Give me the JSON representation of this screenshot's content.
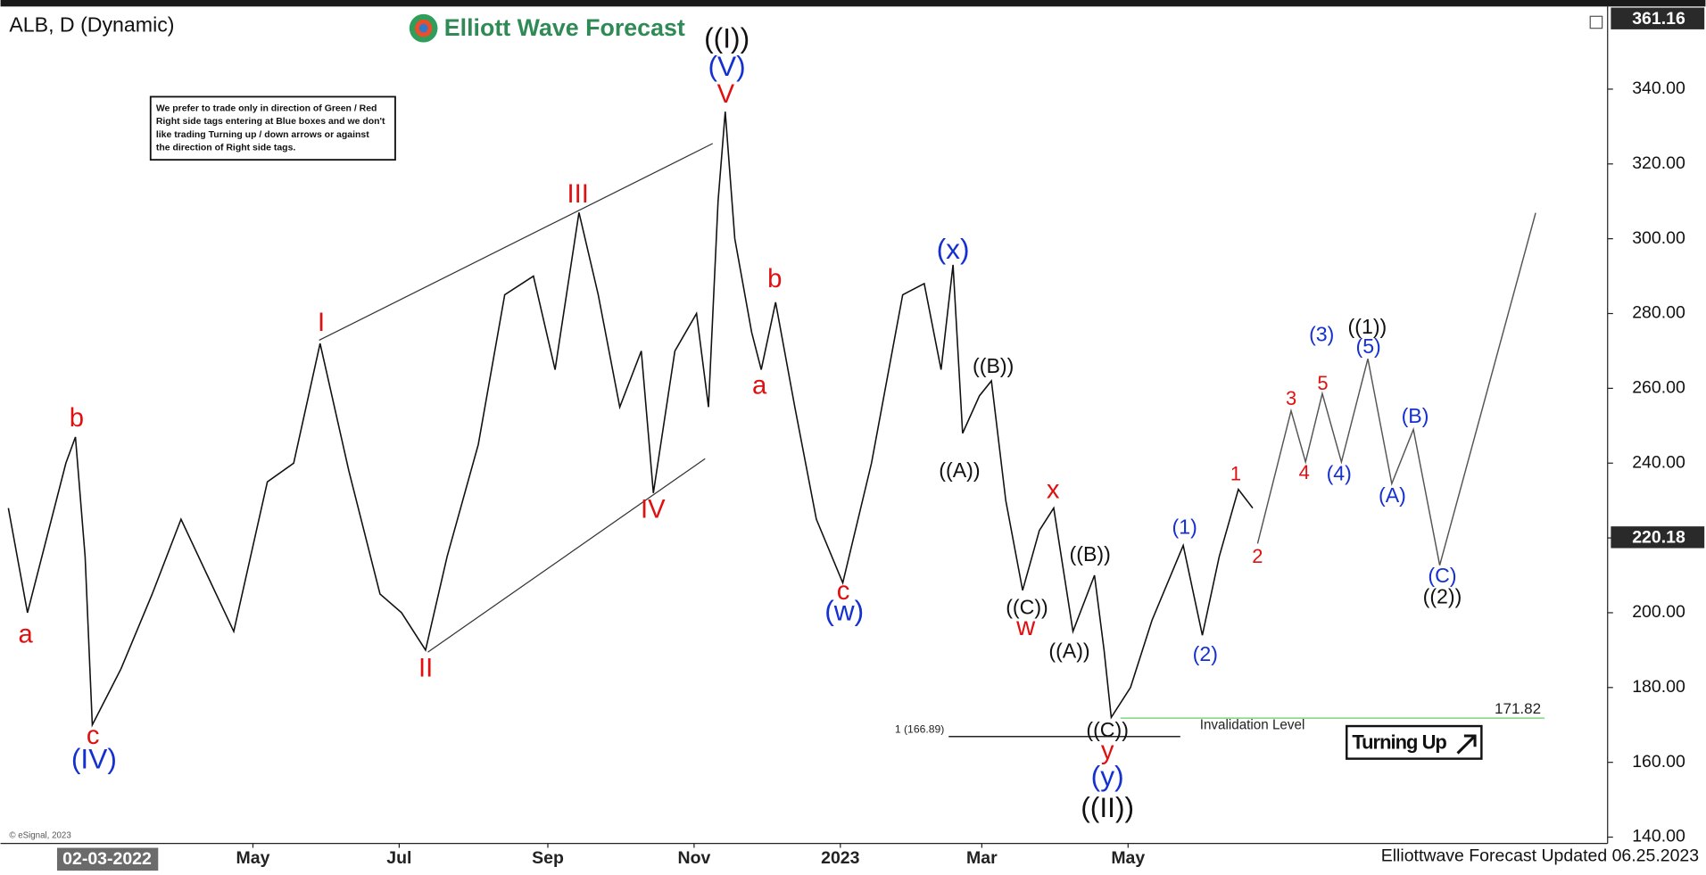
{
  "chart_data": {
    "type": "line",
    "title": "ALB, D (Dynamic)",
    "logo_text": "Elliott Wave Forecast",
    "note_lines": [
      "We prefer to trade only in direction of Green / Red",
      "Right side tags entering at Blue boxes and we don't",
      "like trading Turning up / down arrows or against",
      "the direction of Right side tags."
    ],
    "footer": "Elliottwave Forecast Updated 06.25.2023",
    "copyright": "© eSignal, 2023",
    "cursor_label": "02-03-2022",
    "signal": "Turning Up",
    "xlim": [
      "2022-01-18",
      "2023-11-17"
    ],
    "xticks": [
      {
        "value": "2022-05-01",
        "label": "May"
      },
      {
        "value": "2022-07-01",
        "label": "Jul"
      },
      {
        "value": "2022-09-01",
        "label": "Sep"
      },
      {
        "value": "2022-11-01",
        "label": "Nov"
      },
      {
        "value": "2023-01-01",
        "label": "2023"
      },
      {
        "value": "2023-03-01",
        "label": "Mar"
      },
      {
        "value": "2023-05-01",
        "label": "May"
      }
    ],
    "ylim": [
      138.3,
      361.16
    ],
    "yticks": [
      {
        "value": 140,
        "label": "140.00"
      },
      {
        "value": 160,
        "label": "160.00"
      },
      {
        "value": 180,
        "label": "180.00"
      },
      {
        "value": 200,
        "label": "200.00"
      },
      {
        "value": 220,
        "label": "220.00"
      },
      {
        "value": 240,
        "label": "240.00"
      },
      {
        "value": 260,
        "label": "260.00"
      },
      {
        "value": 280,
        "label": "280.00"
      },
      {
        "value": 300,
        "label": "300.00"
      },
      {
        "value": 320,
        "label": "320.00"
      },
      {
        "value": 340,
        "label": "340.00"
      }
    ],
    "price_markers": [
      361.16,
      220.18
    ],
    "series": [
      {
        "color": "#111111",
        "x": [
          "2022-01-19",
          "2022-01-27",
          "2022-02-12",
          "2022-02-16",
          "2022-02-20",
          "2022-02-23",
          "2022-03-07",
          "2022-03-20",
          "2022-04-01",
          "2022-04-12",
          "2022-04-23",
          "2022-05-07",
          "2022-05-18",
          "2022-05-29",
          "2022-06-10",
          "2022-06-23",
          "2022-07-02",
          "2022-07-12",
          "2022-07-21",
          "2022-08-03",
          "2022-08-14",
          "2022-08-26",
          "2022-09-04",
          "2022-09-14",
          "2022-09-22",
          "2022-10-01",
          "2022-10-10",
          "2022-10-15",
          "2022-10-24",
          "2022-11-02",
          "2022-11-07",
          "2022-11-11",
          "2022-11-14",
          "2022-11-18",
          "2022-11-25",
          "2022-11-29",
          "2022-12-05",
          "2022-12-13",
          "2022-12-22",
          "2023-01-02",
          "2023-01-14",
          "2023-01-27",
          "2023-02-05",
          "2023-02-12",
          "2023-02-17",
          "2023-02-21",
          "2023-02-28",
          "2023-03-05",
          "2023-03-11",
          "2023-03-18",
          "2023-03-25",
          "2023-03-31",
          "2023-04-08",
          "2023-04-17",
          "2023-04-21",
          "2023-04-24",
          "2023-05-02",
          "2023-05-11",
          "2023-05-24",
          "2023-06-01",
          "2023-06-08",
          "2023-06-16",
          "2023-06-22"
        ],
        "values": [
          228,
          200,
          240,
          247,
          215,
          170,
          185,
          205,
          225,
          210,
          195,
          235,
          240,
          272,
          238,
          205,
          200,
          190,
          215,
          245,
          285,
          290,
          265,
          307,
          285,
          255,
          270,
          232,
          270,
          280,
          255,
          310,
          334,
          300,
          275,
          265,
          283,
          255,
          225,
          208,
          240,
          285,
          288,
          265,
          293,
          248,
          258,
          262,
          230,
          206,
          222,
          228,
          195,
          210,
          190,
          172,
          180,
          198,
          218,
          194,
          215,
          233,
          228
        ]
      },
      {
        "color": "#555555",
        "x": [
          "2023-06-24",
          "2023-07-08",
          "2023-07-14",
          "2023-07-21",
          "2023-07-29",
          "2023-08-09",
          "2023-08-19",
          "2023-08-28",
          "2023-09-08",
          "2023-10-18"
        ],
        "values": [
          218.5,
          254,
          240.3,
          258.6,
          240.3,
          267.9,
          234.5,
          249,
          212.7,
          306.9
        ]
      }
    ],
    "levels": [
      {
        "name": "Invalidation Level",
        "value": 171.82,
        "color": "#7ed67e"
      },
      {
        "label": "1 (166.89)",
        "value": 166.89,
        "color": "#222222"
      }
    ],
    "wave_labels": [
      {
        "text": "a",
        "color": "#e01010"
      },
      {
        "text": "b",
        "color": "#e01010"
      },
      {
        "text": "c",
        "color": "#e01010"
      },
      {
        "text": "I",
        "color": "#e01010"
      },
      {
        "text": "II",
        "color": "#e01010"
      },
      {
        "text": "III",
        "color": "#e01010"
      },
      {
        "text": "IV",
        "color": "#e01010"
      },
      {
        "text": "V",
        "color": "#e01010"
      },
      {
        "text": "a",
        "color": "#e01010"
      },
      {
        "text": "b",
        "color": "#e01010"
      },
      {
        "text": "c",
        "color": "#e01010"
      },
      {
        "text": "x",
        "color": "#e01010"
      },
      {
        "text": "w",
        "color": "#e01010"
      },
      {
        "text": "y",
        "color": "#e01010"
      },
      {
        "text": "1",
        "color": "#e01010"
      },
      {
        "text": "2",
        "color": "#e01010"
      },
      {
        "text": "3",
        "color": "#e01010"
      },
      {
        "text": "4",
        "color": "#e01010"
      },
      {
        "text": "5",
        "color": "#e01010"
      },
      {
        "text": "(IV)",
        "color": "#1530d0"
      },
      {
        "text": "(V)",
        "color": "#1530d0"
      },
      {
        "text": "(w)",
        "color": "#1530d0"
      },
      {
        "text": "(x)",
        "color": "#1530d0"
      },
      {
        "text": "(y)",
        "color": "#1530d0"
      },
      {
        "text": "(1)",
        "color": "#1530d0"
      },
      {
        "text": "(2)",
        "color": "#1530d0"
      },
      {
        "text": "(3)",
        "color": "#1530d0"
      },
      {
        "text": "(4)",
        "color": "#1530d0"
      },
      {
        "text": "(5)",
        "color": "#1530d0"
      },
      {
        "text": "(A)",
        "color": "#1530d0"
      },
      {
        "text": "(B)",
        "color": "#1530d0"
      },
      {
        "text": "(C)",
        "color": "#1530d0"
      },
      {
        "text": "((I))",
        "color": "#111111"
      },
      {
        "text": "((II))",
        "color": "#111111"
      },
      {
        "text": "((A))",
        "color": "#111111"
      },
      {
        "text": "((B))",
        "color": "#111111"
      },
      {
        "text": "((C))",
        "color": "#111111"
      },
      {
        "text": "((B))",
        "color": "#111111"
      },
      {
        "text": "((A))",
        "color": "#111111"
      },
      {
        "text": "((C))",
        "color": "#111111"
      },
      {
        "text": "((1))",
        "color": "#111111"
      },
      {
        "text": "((2))",
        "color": "#111111"
      }
    ]
  }
}
